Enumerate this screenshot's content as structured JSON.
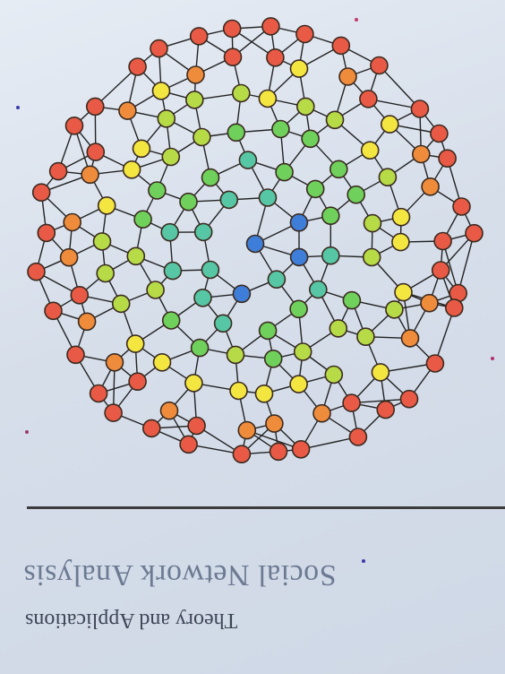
{
  "book": {
    "title": "Social Network Analysis",
    "subtitle": "Theory and Applications"
  },
  "palette": {
    "red": "#e85a45",
    "orange": "#ef8c3c",
    "yellow": "#f3e640",
    "lime": "#b6db47",
    "green": "#6fd05c",
    "teal": "#56c6a4",
    "blue": "#3f7ed8",
    "edge": "#222222",
    "outline": "#3a2a20"
  }
}
